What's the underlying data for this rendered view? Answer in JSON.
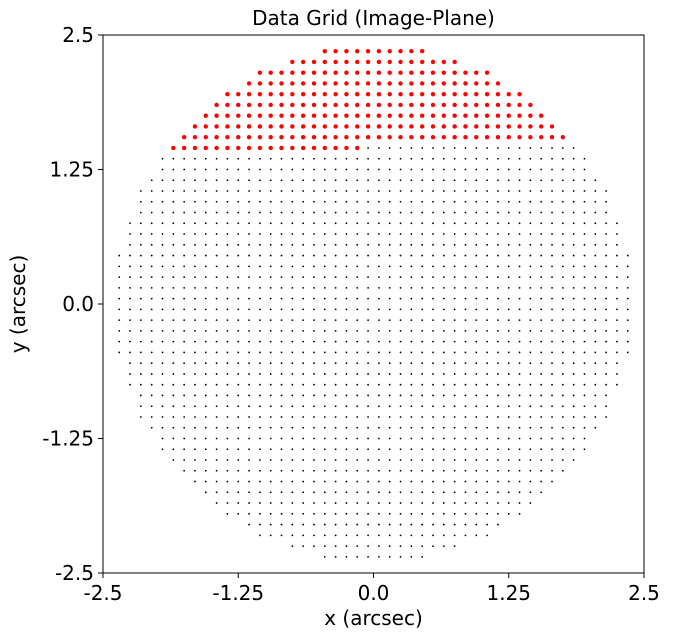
{
  "chart_data": {
    "type": "scatter",
    "title": "Data Grid (Image-Plane)",
    "xlabel": "x (arcsec)",
    "ylabel": "y (arcsec)",
    "xlim": [
      -2.5,
      2.5
    ],
    "ylim": [
      -2.5,
      2.5
    ],
    "xticks": [
      -2.5,
      -1.25,
      0.0,
      1.25,
      2.5
    ],
    "yticks": [
      -2.5,
      -1.25,
      0.0,
      1.25,
      2.5
    ],
    "xtick_labels": [
      "-2.5",
      "-1.25",
      "0.0",
      "1.25",
      "2.5"
    ],
    "ytick_labels": [
      "-2.5",
      "-1.25",
      "0.0",
      "1.25",
      "2.5"
    ],
    "grid": false,
    "series": [
      {
        "kind": "circular grid of points",
        "color": "#000000",
        "marker": "small dot",
        "grid_spacing": 0.1,
        "x_range": [
          -2.35,
          2.35
        ],
        "y_range": [
          -2.35,
          2.35
        ],
        "radius": 2.4
      },
      {
        "kind": "highlighted points",
        "color": "#ff0000",
        "marker": "dot",
        "rows": [
          {
            "y": 2.35,
            "x_from": -0.45,
            "x_to": 0.45
          },
          {
            "y": 2.25,
            "x_from": -0.75,
            "x_to": 0.75
          },
          {
            "y": 2.15,
            "x_from": -1.05,
            "x_to": 1.05
          },
          {
            "y": 2.05,
            "x_from": -1.15,
            "x_to": 1.15
          },
          {
            "y": 1.95,
            "x_from": -1.35,
            "x_to": 1.35
          },
          {
            "y": 1.85,
            "x_from": -1.45,
            "x_to": 1.45
          },
          {
            "y": 1.75,
            "x_from": -1.55,
            "x_to": 1.55
          },
          {
            "y": 1.65,
            "x_from": -1.65,
            "x_to": 1.65
          },
          {
            "y": 1.55,
            "x_from": -1.75,
            "x_to": 1.75
          },
          {
            "y": 1.45,
            "x_from": -1.85,
            "x_to": -0.15
          }
        ]
      }
    ]
  }
}
